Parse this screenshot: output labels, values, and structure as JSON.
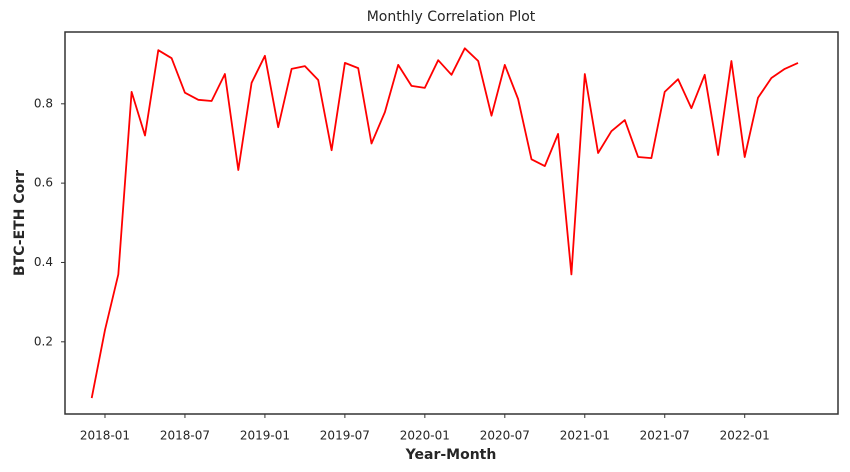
{
  "chart_data": {
    "type": "line",
    "title": "Monthly Correlation Plot",
    "x_label": "Year-Month",
    "y_label": "BTC-ETH Corr",
    "x": [
      "2017-12",
      "2018-01",
      "2018-02",
      "2018-03",
      "2018-04",
      "2018-05",
      "2018-06",
      "2018-07",
      "2018-08",
      "2018-09",
      "2018-10",
      "2018-11",
      "2018-12",
      "2019-01",
      "2019-02",
      "2019-03",
      "2019-04",
      "2019-05",
      "2019-06",
      "2019-07",
      "2019-08",
      "2019-09",
      "2019-10",
      "2019-11",
      "2019-12",
      "2020-01",
      "2020-02",
      "2020-03",
      "2020-04",
      "2020-05",
      "2020-06",
      "2020-07",
      "2020-08",
      "2020-09",
      "2020-10",
      "2020-11",
      "2020-12",
      "2021-01",
      "2021-02",
      "2021-03",
      "2021-04",
      "2021-05",
      "2021-06",
      "2021-07",
      "2021-08",
      "2021-09",
      "2021-10",
      "2021-11",
      "2021-12",
      "2022-01",
      "2022-02",
      "2022-03",
      "2022-04",
      "2022-05"
    ],
    "series": [
      {
        "color": "#ff0000",
        "values": [
          0.058,
          0.23,
          0.37,
          0.83,
          0.72,
          0.935,
          0.915,
          0.828,
          0.81,
          0.807,
          0.875,
          0.633,
          0.853,
          0.921,
          0.741,
          0.888,
          0.895,
          0.86,
          0.683,
          0.903,
          0.89,
          0.7,
          0.779,
          0.898,
          0.845,
          0.84,
          0.91,
          0.873,
          0.94,
          0.908,
          0.77,
          0.898,
          0.812,
          0.66,
          0.643,
          0.724,
          0.37,
          0.875,
          0.676,
          0.731,
          0.759,
          0.666,
          0.663,
          0.83,
          0.862,
          0.789,
          0.873,
          0.671,
          0.908,
          0.666,
          0.815,
          0.865,
          0.888,
          0.903
        ]
      }
    ],
    "xlim": [
      "2017-10",
      "2022-08"
    ],
    "xticks": [
      "2018-01",
      "2018-07",
      "2019-01",
      "2019-07",
      "2020-01",
      "2020-07",
      "2021-01",
      "2021-07",
      "2022-01"
    ],
    "ylim": [
      0.018,
      0.981
    ],
    "yticks": [
      0.2,
      0.4,
      0.6,
      0.8
    ]
  }
}
